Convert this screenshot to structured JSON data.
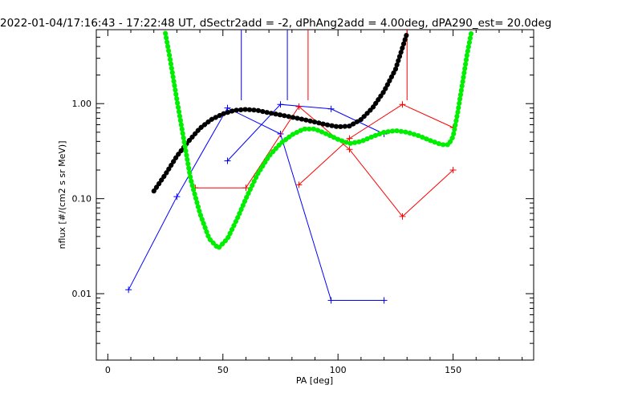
{
  "chart_data": {
    "type": "line",
    "title": "2022-01-04/17:16:43 - 17:22:48 UT, dSectr2add = -2, dPhAng2add = 4.00deg, dPA290_est=  20.0deg",
    "xlabel": "PA [deg]",
    "ylabel": "nflux [#/(cm2 s sr MeV)]",
    "xlim": [
      -5,
      185
    ],
    "ylim": [
      0.002,
      6
    ],
    "yscale": "log",
    "xticks": [
      0,
      50,
      100,
      150
    ],
    "xtick_labels": [
      "0",
      "50",
      "100",
      "150"
    ],
    "yticks": [
      0.01,
      0.1,
      1.0
    ],
    "ytick_labels": [
      "0.01",
      "0.10",
      "1.00"
    ],
    "grid": false,
    "legend": "none",
    "series": [
      {
        "color": "#0000ff",
        "marker": "+",
        "x": [
          9,
          30,
          52,
          75,
          97,
          120
        ],
        "y": [
          0.011,
          0.105,
          0.9,
          0.48,
          0.0085,
          0.0085
        ]
      },
      {
        "color": "#0000ff",
        "marker": "+",
        "x": [
          52,
          75,
          97,
          120
        ],
        "y": [
          0.25,
          0.98,
          0.88,
          0.48
        ]
      },
      {
        "color": "#ff0000",
        "marker": "+",
        "x": [
          38,
          60,
          83,
          105,
          128,
          150
        ],
        "y": [
          0.13,
          0.13,
          0.93,
          0.33,
          0.065,
          0.2
        ]
      },
      {
        "color": "#ff0000",
        "marker": "+",
        "x": [
          83,
          105,
          128,
          150
        ],
        "y": [
          0.14,
          0.43,
          0.98,
          0.56
        ]
      },
      {
        "color": "#000000",
        "style": "thick-dotted",
        "x": [
          20,
          25,
          30,
          35,
          40,
          45,
          50,
          55,
          60,
          65,
          70,
          75,
          80,
          85,
          90,
          95,
          100,
          105,
          110,
          115,
          120,
          125,
          130
        ],
        "y": [
          0.12,
          0.18,
          0.28,
          0.4,
          0.55,
          0.68,
          0.78,
          0.85,
          0.87,
          0.85,
          0.8,
          0.76,
          0.72,
          0.68,
          0.64,
          0.6,
          0.57,
          0.58,
          0.68,
          0.9,
          1.35,
          2.3,
          5.5
        ]
      },
      {
        "color": "#00ee00",
        "style": "thick-dotted",
        "x": [
          25,
          27,
          30,
          33,
          36,
          40,
          44,
          48,
          52,
          56,
          60,
          65,
          70,
          75,
          80,
          85,
          90,
          95,
          100,
          105,
          110,
          115,
          120,
          125,
          130,
          135,
          140,
          145,
          148,
          150,
          152,
          154,
          156,
          158
        ],
        "y": [
          5.5,
          3,
          1.1,
          0.42,
          0.16,
          0.07,
          0.038,
          0.03,
          0.038,
          0.06,
          0.1,
          0.18,
          0.28,
          0.38,
          0.47,
          0.54,
          0.54,
          0.48,
          0.42,
          0.38,
          0.4,
          0.45,
          0.5,
          0.52,
          0.5,
          0.46,
          0.41,
          0.37,
          0.37,
          0.45,
          0.8,
          1.6,
          3.2,
          5.8
        ]
      }
    ],
    "vertical_markers": [
      {
        "color": "#0000ff",
        "x": 58
      },
      {
        "color": "#0000ff",
        "x": 78
      },
      {
        "color": "#ff0000",
        "x": 87
      },
      {
        "color": "#ff0000",
        "x": 130
      }
    ]
  }
}
